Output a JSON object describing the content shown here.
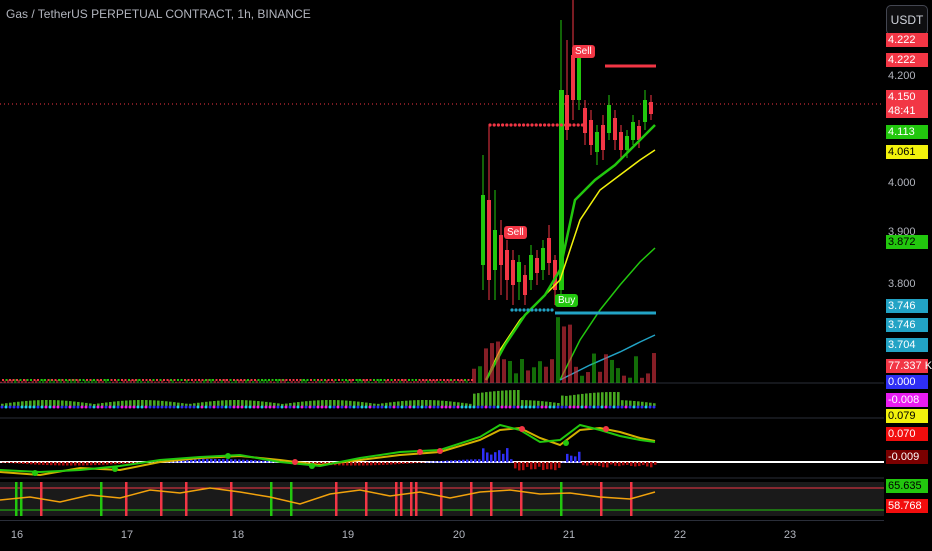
{
  "header": {
    "title": "Gas / TetherUS PERPETUAL CONTRACT, 1h, BINANCE"
  },
  "toolbar": {
    "currency_label": "USDT"
  },
  "price_scale": {
    "ticks": [
      {
        "label": "4.200",
        "y": 76
      },
      {
        "label": "4.000",
        "y": 183
      },
      {
        "label": "3.900",
        "y": 232
      },
      {
        "label": "3.800",
        "y": 284
      }
    ],
    "badges": [
      {
        "label": "4.222",
        "y": 40,
        "bg": "#f23645",
        "fg": "#ffffff"
      },
      {
        "label": "4.222",
        "y": 60,
        "bg": "#f23645",
        "fg": "#ffffff"
      },
      {
        "label": "4.150",
        "y": 97,
        "bg": "#f23645",
        "fg": "#ffffff"
      },
      {
        "label": "48:41",
        "y": 111,
        "bg": "#f23645",
        "fg": "#ffffff"
      },
      {
        "label": "4.113",
        "y": 132,
        "bg": "#22c70e",
        "fg": "#ffffff"
      },
      {
        "label": "4.061",
        "y": 152,
        "bg": "#f2f20c",
        "fg": "#000000"
      },
      {
        "label": "3.872",
        "y": 242,
        "bg": "#22c70e",
        "fg": "#000000"
      },
      {
        "label": "3.746",
        "y": 306,
        "bg": "#22a3c5",
        "fg": "#ffffff"
      },
      {
        "label": "3.746",
        "y": 325,
        "bg": "#22a3c5",
        "fg": "#ffffff"
      },
      {
        "label": "3.704",
        "y": 345,
        "bg": "#22a3c5",
        "fg": "#ffffff"
      },
      {
        "label": "77.337 K",
        "y": 366,
        "bg": "#f23645",
        "fg": "#ffffff"
      },
      {
        "label": "0.000",
        "y": 382,
        "bg": "#2f2ff5",
        "fg": "#ffffff"
      },
      {
        "label": "-0.008",
        "y": 400,
        "bg": "#e81cf0",
        "fg": "#ffffff"
      },
      {
        "label": "0.079",
        "y": 416,
        "bg": "#f2f20c",
        "fg": "#000000"
      },
      {
        "label": "0.070",
        "y": 434,
        "bg": "#f20d0d",
        "fg": "#ffffff"
      },
      {
        "label": "-0.009",
        "y": 457,
        "bg": "#7a0000",
        "fg": "#ffffff"
      },
      {
        "label": "65.635",
        "y": 486,
        "bg": "#22c70e",
        "fg": "#000000"
      },
      {
        "label": "58.768",
        "y": 506,
        "bg": "#f20d0d",
        "fg": "#ffffff"
      }
    ]
  },
  "time_axis": {
    "labels": [
      {
        "label": "16",
        "x": 17
      },
      {
        "label": "17",
        "x": 127
      },
      {
        "label": "18",
        "x": 238
      },
      {
        "label": "19",
        "x": 348
      },
      {
        "label": "20",
        "x": 459
      },
      {
        "label": "21",
        "x": 569
      },
      {
        "label": "22",
        "x": 680
      },
      {
        "label": "23",
        "x": 790
      }
    ]
  },
  "signals": [
    {
      "label": "Sell",
      "type": "sell"
    },
    {
      "label": "Sell",
      "type": "sell"
    },
    {
      "label": "Buy",
      "type": "buy"
    }
  ],
  "colors": {
    "up": "#22c70e",
    "down": "#f23645",
    "accent": "#22a3c5"
  }
}
